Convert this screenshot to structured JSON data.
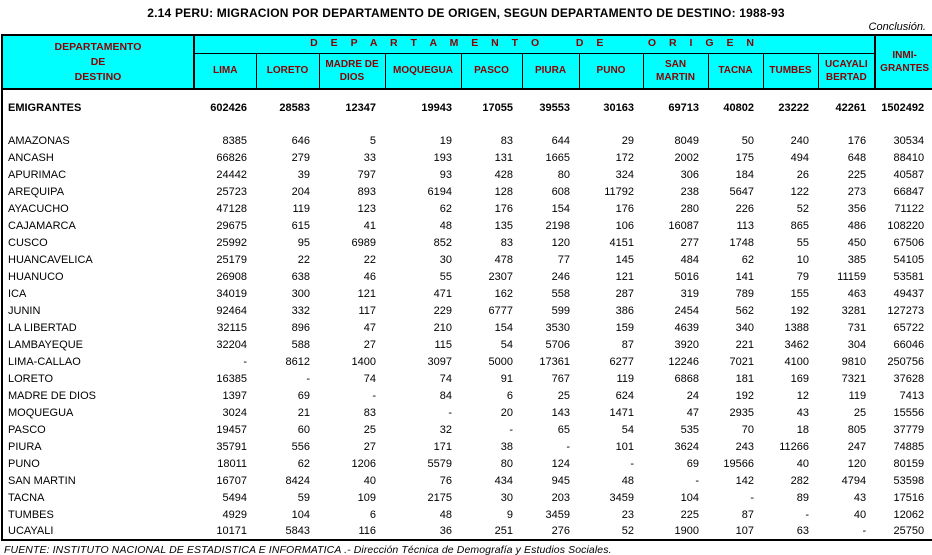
{
  "title": "2.14  PERU: MIGRACION  POR DEPARTAMENTO DE ORIGEN, SEGUN DEPARTAMENTO DE DESTINO: 1988-93",
  "conclusion_label": "Conclusión.",
  "colors": {
    "header_background": "#00ffff",
    "header_text": "#8b0000",
    "body_text": "#000000"
  },
  "table": {
    "dest_header_lines": [
      "DEPARTAMENTO",
      "DE",
      "DESTINO"
    ],
    "origin_band_label": "D E P A R T A M E N T O    D E     O R I G E N",
    "origin_columns": [
      [
        "LIMA"
      ],
      [
        "LORETO"
      ],
      [
        "MADRE DE",
        "DIOS"
      ],
      [
        "MOQUEGUA"
      ],
      [
        "PASCO"
      ],
      [
        "PIURA"
      ],
      [
        "PUNO"
      ],
      [
        "SAN",
        "MARTIN"
      ],
      [
        "TACNA"
      ],
      [
        "TUMBES"
      ],
      [
        "UCAYALI",
        "BERTAD"
      ]
    ],
    "inmigrantes_column_lines": [
      "INMI-",
      "GRANTES"
    ],
    "totals_row": {
      "label": "EMIGRANTES",
      "values": [
        "602426",
        "28583",
        "12347",
        "19943",
        "17055",
        "39553",
        "30163",
        "69713",
        "40802",
        "23222",
        "42261",
        "1502492"
      ]
    },
    "rows": [
      {
        "label": "AMAZONAS",
        "values": [
          "8385",
          "646",
          "5",
          "19",
          "83",
          "644",
          "29",
          "8049",
          "50",
          "240",
          "176",
          "30534"
        ]
      },
      {
        "label": "ANCASH",
        "values": [
          "66826",
          "279",
          "33",
          "193",
          "131",
          "1665",
          "172",
          "2002",
          "175",
          "494",
          "648",
          "88410"
        ]
      },
      {
        "label": "APURIMAC",
        "values": [
          "24442",
          "39",
          "797",
          "93",
          "428",
          "80",
          "324",
          "306",
          "184",
          "26",
          "225",
          "40587"
        ]
      },
      {
        "label": "AREQUIPA",
        "values": [
          "25723",
          "204",
          "893",
          "6194",
          "128",
          "608",
          "11792",
          "238",
          "5647",
          "122",
          "273",
          "66847"
        ]
      },
      {
        "label": "AYACUCHO",
        "values": [
          "47128",
          "119",
          "123",
          "62",
          "176",
          "154",
          "176",
          "280",
          "226",
          "52",
          "356",
          "71122"
        ]
      },
      {
        "label": "CAJAMARCA",
        "values": [
          "29675",
          "615",
          "41",
          "48",
          "135",
          "2198",
          "106",
          "16087",
          "113",
          "865",
          "486",
          "108220"
        ]
      },
      {
        "label": "CUSCO",
        "values": [
          "25992",
          "95",
          "6989",
          "852",
          "83",
          "120",
          "4151",
          "277",
          "1748",
          "55",
          "450",
          "67506"
        ]
      },
      {
        "label": "HUANCAVELICA",
        "values": [
          "25179",
          "22",
          "22",
          "30",
          "478",
          "77",
          "145",
          "484",
          "62",
          "10",
          "385",
          "54105"
        ]
      },
      {
        "label": "HUANUCO",
        "values": [
          "26908",
          "638",
          "46",
          "55",
          "2307",
          "246",
          "121",
          "5016",
          "141",
          "79",
          "11159",
          "53581"
        ]
      },
      {
        "label": "ICA",
        "values": [
          "34019",
          "300",
          "121",
          "471",
          "162",
          "558",
          "287",
          "319",
          "789",
          "155",
          "463",
          "49437"
        ]
      },
      {
        "label": "JUNIN",
        "values": [
          "92464",
          "332",
          "117",
          "229",
          "6777",
          "599",
          "386",
          "2454",
          "562",
          "192",
          "3281",
          "127273"
        ]
      },
      {
        "label": "LA LIBERTAD",
        "values": [
          "32115",
          "896",
          "47",
          "210",
          "154",
          "3530",
          "159",
          "4639",
          "340",
          "1388",
          "731",
          "65722"
        ]
      },
      {
        "label": "LAMBAYEQUE",
        "values": [
          "32204",
          "588",
          "27",
          "115",
          "54",
          "5706",
          "87",
          "3920",
          "221",
          "3462",
          "304",
          "66046"
        ]
      },
      {
        "label": "LIMA-CALLAO",
        "values": [
          "-",
          "8612",
          "1400",
          "3097",
          "5000",
          "17361",
          "6277",
          "12246",
          "7021",
          "4100",
          "9810",
          "250756"
        ]
      },
      {
        "label": "LORETO",
        "values": [
          "16385",
          "-",
          "74",
          "74",
          "91",
          "767",
          "119",
          "6868",
          "181",
          "169",
          "7321",
          "37628"
        ]
      },
      {
        "label": "MADRE DE DIOS",
        "values": [
          "1397",
          "69",
          "-",
          "84",
          "6",
          "25",
          "624",
          "24",
          "192",
          "12",
          "119",
          "7413"
        ]
      },
      {
        "label": "MOQUEGUA",
        "values": [
          "3024",
          "21",
          "83",
          "-",
          "20",
          "143",
          "1471",
          "47",
          "2935",
          "43",
          "25",
          "15556"
        ]
      },
      {
        "label": "PASCO",
        "values": [
          "19457",
          "60",
          "25",
          "32",
          "-",
          "65",
          "54",
          "535",
          "70",
          "18",
          "805",
          "37779"
        ]
      },
      {
        "label": "PIURA",
        "values": [
          "35791",
          "556",
          "27",
          "171",
          "38",
          "-",
          "101",
          "3624",
          "243",
          "11266",
          "247",
          "74885"
        ]
      },
      {
        "label": "PUNO",
        "values": [
          "18011",
          "62",
          "1206",
          "5579",
          "80",
          "124",
          "-",
          "69",
          "19566",
          "40",
          "120",
          "80159"
        ]
      },
      {
        "label": "SAN MARTIN",
        "values": [
          "16707",
          "8424",
          "40",
          "76",
          "434",
          "945",
          "48",
          "-",
          "142",
          "282",
          "4794",
          "53598"
        ]
      },
      {
        "label": "TACNA",
        "values": [
          "5494",
          "59",
          "109",
          "2175",
          "30",
          "203",
          "3459",
          "104",
          "-",
          "89",
          "43",
          "17516"
        ]
      },
      {
        "label": "TUMBES",
        "values": [
          "4929",
          "104",
          "6",
          "48",
          "9",
          "3459",
          "23",
          "225",
          "87",
          "-",
          "40",
          "12062"
        ]
      },
      {
        "label": "UCAYALI",
        "values": [
          "10171",
          "5843",
          "116",
          "36",
          "251",
          "276",
          "52",
          "1900",
          "107",
          "63",
          "-",
          "25750"
        ]
      }
    ]
  },
  "footer": "FUENTE: INSTITUTO NACIONAL DE ESTADISTICA E INFORMATICA .- Dirección Técnica de Demografía y Estudios Sociales."
}
